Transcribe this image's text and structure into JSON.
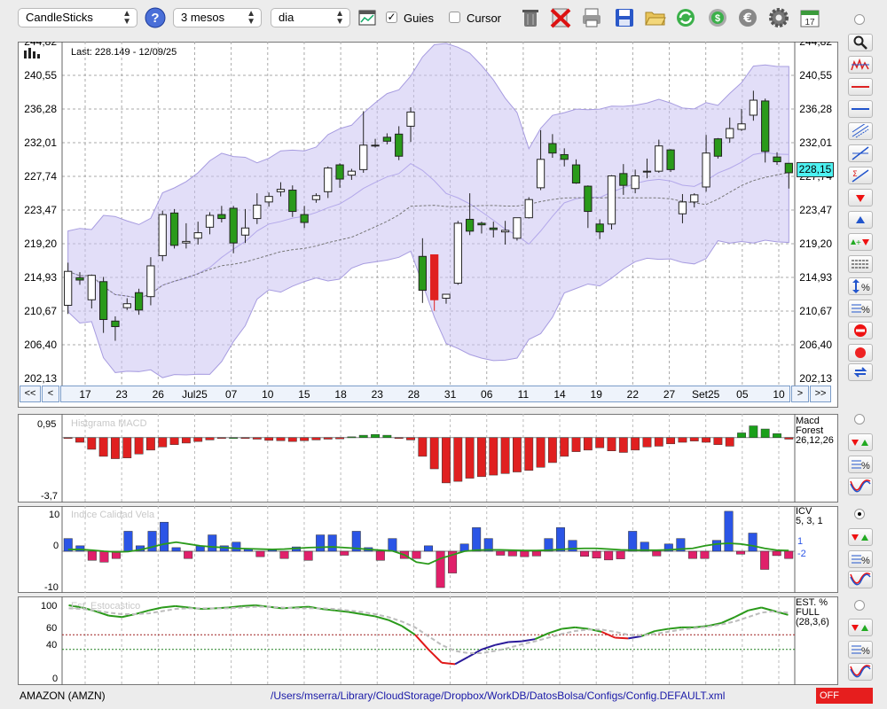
{
  "toolbar": {
    "chart_type": "CandleSticks",
    "period": "3 mesos",
    "interval": "dia",
    "guides_label": "Guies",
    "guides_checked": true,
    "cursor_label": "Cursor",
    "cursor_checked": false
  },
  "main_chart": {
    "last_label": "Last: 228.149 - 12/09/25",
    "price_badge": "228,15",
    "y_ticks": [
      "244,82",
      "240,55",
      "236,28",
      "232,01",
      "227,74",
      "223,47",
      "219,20",
      "214,93",
      "210,67",
      "206,40",
      "202,13"
    ],
    "x_labels": [
      "17",
      "23",
      "26",
      "Jul25",
      "07",
      "10",
      "15",
      "18",
      "23",
      "28",
      "31",
      "06",
      "11",
      "14",
      "19",
      "22",
      "27",
      "Set25",
      "05",
      "10"
    ],
    "nav_left": [
      "<<",
      "<"
    ],
    "nav_right": [
      ">",
      ">>"
    ]
  },
  "macd_panel": {
    "watermark": "Histgrama MACD",
    "y_top": "0,95",
    "y_bottom": "-3,7",
    "right_label_1": "Macd",
    "right_label_2": "Forest",
    "right_label_3": "26,12,26"
  },
  "icv_panel": {
    "watermark": "Indice Calidad Vela",
    "y_top": "10",
    "y_mid": "0",
    "y_bottom": "-10",
    "right_label_1": "ICV",
    "right_label_2": "5, 3, 1",
    "right_pos": "1",
    "right_neg": "-2"
  },
  "stoch_panel": {
    "watermark": "Est. Estocastico",
    "y_ticks": [
      "100",
      "60",
      "40",
      "0"
    ],
    "right_label_1": "EST. %",
    "right_label_2": "FULL",
    "right_label_3": "(28,3,6)"
  },
  "status": {
    "symbol": "AMAZON (AMZN)",
    "config_path": "/Users/mserra/Library/CloudStorage/Dropbox/WorkDB/DatosBolsa/Configs/Config.DEFAULT.xml",
    "badge": "OFF"
  },
  "colors": {
    "bull": "#ffffff",
    "bear": "#2a9a1a",
    "band": "#cbc3f2",
    "macd_neg": "#e02020",
    "macd_pos": "#1aa01a",
    "icv_pos": "#2b55e6",
    "icv_neg": "#e0206a",
    "icv_line": "#2a9a1a",
    "stoch_k": "#2a9a1a",
    "stoch_d": "#bdbdbd",
    "off_badge": "#e61e1e"
  },
  "chart_data": [
    {
      "type": "candlestick",
      "title": "Last: 228.149 - 12/09/25",
      "ylim": [
        202.13,
        244.82
      ],
      "x_tick_labels": [
        "17",
        "23",
        "26",
        "Jul25",
        "07",
        "10",
        "15",
        "18",
        "23",
        "28",
        "31",
        "06",
        "11",
        "14",
        "19",
        "22",
        "27",
        "Set25",
        "05",
        "10"
      ],
      "candles": [
        {
          "o": 211.4,
          "h": 216.8,
          "l": 210.3,
          "c": 215.7
        },
        {
          "o": 214.9,
          "h": 215.6,
          "l": 214.0,
          "c": 214.6
        },
        {
          "o": 212.1,
          "h": 215.3,
          "l": 211.0,
          "c": 215.2
        },
        {
          "o": 214.4,
          "h": 215.0,
          "l": 207.9,
          "c": 209.6
        },
        {
          "o": 209.4,
          "h": 210.0,
          "l": 206.9,
          "c": 208.7
        },
        {
          "o": 211.1,
          "h": 212.3,
          "l": 210.8,
          "c": 211.6
        },
        {
          "o": 213.0,
          "h": 213.5,
          "l": 210.2,
          "c": 210.8
        },
        {
          "o": 212.5,
          "h": 217.5,
          "l": 211.4,
          "c": 216.4
        },
        {
          "o": 217.7,
          "h": 223.4,
          "l": 217.0,
          "c": 222.9
        },
        {
          "o": 223.1,
          "h": 223.6,
          "l": 218.6,
          "c": 219.0
        },
        {
          "o": 219.3,
          "h": 221.8,
          "l": 218.6,
          "c": 219.5
        },
        {
          "o": 219.9,
          "h": 222.0,
          "l": 219.1,
          "c": 220.6
        },
        {
          "o": 221.3,
          "h": 223.2,
          "l": 220.4,
          "c": 222.8
        },
        {
          "o": 222.9,
          "h": 224.0,
          "l": 221.9,
          "c": 222.4
        },
        {
          "o": 223.7,
          "h": 224.0,
          "l": 218.0,
          "c": 219.3
        },
        {
          "o": 220.3,
          "h": 223.6,
          "l": 219.3,
          "c": 221.2
        },
        {
          "o": 222.4,
          "h": 225.6,
          "l": 221.7,
          "c": 224.1
        },
        {
          "o": 224.5,
          "h": 225.7,
          "l": 223.9,
          "c": 225.2
        },
        {
          "o": 225.8,
          "h": 227.0,
          "l": 225.2,
          "c": 226.1
        },
        {
          "o": 226.0,
          "h": 226.6,
          "l": 222.6,
          "c": 223.3
        },
        {
          "o": 222.9,
          "h": 224.0,
          "l": 221.2,
          "c": 221.9
        },
        {
          "o": 224.8,
          "h": 225.6,
          "l": 224.4,
          "c": 225.3
        },
        {
          "o": 225.8,
          "h": 229.0,
          "l": 225.0,
          "c": 228.8
        },
        {
          "o": 229.2,
          "h": 229.4,
          "l": 226.3,
          "c": 227.4
        },
        {
          "o": 227.9,
          "h": 228.7,
          "l": 227.3,
          "c": 228.4
        },
        {
          "o": 228.6,
          "h": 236.0,
          "l": 228.2,
          "c": 231.7
        },
        {
          "o": 231.6,
          "h": 232.5,
          "l": 231.4,
          "c": 231.7
        },
        {
          "o": 232.7,
          "h": 233.2,
          "l": 231.8,
          "c": 232.2
        },
        {
          "o": 233.1,
          "h": 234.1,
          "l": 229.8,
          "c": 230.3
        },
        {
          "o": 234.1,
          "h": 236.5,
          "l": 232.1,
          "c": 235.9
        },
        {
          "o": 217.6,
          "h": 219.9,
          "l": 211.7,
          "c": 213.3
        },
        {
          "o": 217.8,
          "h": 217.8,
          "l": 210.7,
          "c": 212.1
        },
        {
          "o": 212.3,
          "h": 212.4,
          "l": 211.6,
          "c": 212.8
        },
        {
          "o": 214.2,
          "h": 222.1,
          "l": 214.0,
          "c": 221.8
        },
        {
          "o": 222.3,
          "h": 225.6,
          "l": 220.3,
          "c": 220.8
        },
        {
          "o": 221.8,
          "h": 222.0,
          "l": 220.5,
          "c": 221.6
        },
        {
          "o": 221.2,
          "h": 222.0,
          "l": 220.0,
          "c": 221.0
        },
        {
          "o": 220.7,
          "h": 222.1,
          "l": 219.1,
          "c": 220.9
        },
        {
          "o": 219.9,
          "h": 222.2,
          "l": 219.6,
          "c": 222.5
        },
        {
          "o": 222.5,
          "h": 225.1,
          "l": 222.4,
          "c": 224.8
        },
        {
          "o": 226.3,
          "h": 233.6,
          "l": 226.0,
          "c": 229.9
        },
        {
          "o": 231.9,
          "h": 233.1,
          "l": 230.1,
          "c": 230.7
        },
        {
          "o": 230.5,
          "h": 231.3,
          "l": 229.0,
          "c": 229.9
        },
        {
          "o": 229.2,
          "h": 229.9,
          "l": 226.8,
          "c": 226.9
        },
        {
          "o": 226.5,
          "h": 226.6,
          "l": 221.2,
          "c": 223.3
        },
        {
          "o": 221.7,
          "h": 222.3,
          "l": 219.8,
          "c": 220.7
        },
        {
          "o": 221.7,
          "h": 227.9,
          "l": 221.0,
          "c": 227.8
        },
        {
          "o": 228.1,
          "h": 229.3,
          "l": 225.4,
          "c": 226.6
        },
        {
          "o": 226.2,
          "h": 228.6,
          "l": 225.6,
          "c": 227.8
        },
        {
          "o": 228.3,
          "h": 230.0,
          "l": 227.5,
          "c": 228.4
        },
        {
          "o": 228.4,
          "h": 232.4,
          "l": 228.2,
          "c": 231.6
        },
        {
          "o": 231.1,
          "h": 231.2,
          "l": 228.3,
          "c": 228.6
        },
        {
          "o": 223.0,
          "h": 225.5,
          "l": 221.8,
          "c": 224.5
        },
        {
          "o": 224.5,
          "h": 225.6,
          "l": 223.8,
          "c": 225.4
        },
        {
          "o": 226.4,
          "h": 233.0,
          "l": 225.8,
          "c": 230.7
        },
        {
          "o": 232.5,
          "h": 232.6,
          "l": 230.0,
          "c": 230.3
        },
        {
          "o": 232.6,
          "h": 235.2,
          "l": 232.0,
          "c": 233.8
        },
        {
          "o": 233.7,
          "h": 236.3,
          "l": 233.5,
          "c": 234.4
        },
        {
          "o": 235.5,
          "h": 238.6,
          "l": 234.8,
          "c": 237.4
        },
        {
          "o": 237.3,
          "h": 237.6,
          "l": 229.5,
          "c": 230.9
        },
        {
          "o": 230.2,
          "h": 230.8,
          "l": 229.2,
          "c": 229.6
        },
        {
          "o": 229.4,
          "h": 229.4,
          "l": 226.2,
          "c": 228.2
        }
      ]
    },
    {
      "type": "bar",
      "title": "Histgrama MACD",
      "ylim": [
        -3.7,
        0.95
      ],
      "values": [
        -0.05,
        -0.3,
        -0.75,
        -1.2,
        -1.35,
        -1.3,
        -1.05,
        -0.8,
        -0.6,
        -0.45,
        -0.35,
        -0.25,
        -0.15,
        -0.05,
        0.0,
        -0.05,
        -0.1,
        -0.18,
        -0.2,
        -0.25,
        -0.2,
        -0.15,
        -0.1,
        -0.08,
        0.05,
        0.15,
        0.2,
        0.15,
        -0.02,
        -0.15,
        -1.2,
        -2.0,
        -2.9,
        -2.8,
        -2.6,
        -2.5,
        -2.4,
        -2.3,
        -2.2,
        -2.1,
        -1.9,
        -1.6,
        -1.2,
        -0.9,
        -0.8,
        -0.65,
        -0.85,
        -0.95,
        -0.8,
        -0.6,
        -0.55,
        -0.4,
        -0.3,
        -0.22,
        -0.3,
        -0.45,
        -0.55,
        0.3,
        0.75,
        0.55,
        0.25,
        -0.1
      ]
    },
    {
      "type": "bar",
      "title": "Indice Calidad Vela",
      "ylim": [
        -10,
        10
      ],
      "values": [
        3.5,
        1.5,
        -2.5,
        -3,
        -2,
        5.5,
        1.5,
        5.5,
        8,
        1,
        -2,
        1.5,
        4.5,
        1.5,
        2.5,
        0.7,
        -1.5,
        0.6,
        -2,
        1.2,
        -2.5,
        4.5,
        4.5,
        -1.1,
        5.5,
        1,
        -2.5,
        3.5,
        -2,
        -2,
        1.5,
        -10,
        -6,
        2,
        6.5,
        3.5,
        -1.1,
        -1.3,
        -1.5,
        -1.3,
        3.5,
        6.5,
        3,
        -1.4,
        -1.9,
        -2.4,
        -2.1,
        5.5,
        2.5,
        -1.3,
        2,
        3.5,
        -2,
        -2,
        3,
        11,
        -0.8,
        5,
        -5,
        -1.2,
        -2
      ],
      "signal_k": [
        0.5,
        0.5,
        0.3,
        0,
        -0.2,
        -0.1,
        0.4,
        1.2,
        2,
        2.5,
        2,
        1.5,
        1.2,
        1,
        0.8,
        0.7,
        0.6,
        0.5,
        0.6,
        0.8,
        1,
        1.1,
        1.2,
        1,
        0.8,
        0.5,
        0.3,
        0.1,
        -1,
        -3,
        -3.5,
        -2,
        -1,
        0,
        0.3,
        0.4,
        0.4,
        0.3,
        0.2,
        0.2,
        0.3,
        0.5,
        0.7,
        0.8,
        0.8,
        0.6,
        0.4,
        0.3,
        0.3,
        0.3,
        0.4,
        0.6,
        0.8,
        1.5,
        2,
        2.2,
        2,
        1.5,
        0.8,
        0.3,
        0.2
      ],
      "right_value_pos": 1,
      "right_value_neg": -2
    },
    {
      "type": "line",
      "title": "Est. Estocastico",
      "ylim": [
        0,
        100
      ],
      "series": [
        {
          "name": "K",
          "values": [
            100,
            97,
            92,
            86,
            84,
            88,
            93,
            97,
            99,
            97,
            95,
            96,
            97,
            99,
            100,
            98,
            96,
            97,
            98,
            95,
            93,
            91,
            88,
            85,
            80,
            72,
            60,
            40,
            22,
            20,
            30,
            40,
            46,
            50,
            51,
            54,
            62,
            68,
            70,
            68,
            64,
            56,
            55,
            58,
            65,
            68,
            70,
            70,
            72,
            76,
            84,
            93,
            97,
            92,
            87
          ]
        },
        {
          "name": "D",
          "values": [
            96,
            95,
            93,
            90,
            88,
            88,
            89,
            92,
            95,
            96,
            96,
            96,
            96,
            97,
            98,
            98,
            97,
            96,
            96,
            96,
            95,
            93,
            91,
            88,
            84,
            78,
            70,
            58,
            46,
            38,
            35,
            35,
            38,
            42,
            47,
            51,
            56,
            61,
            65,
            67,
            67,
            64,
            60,
            59,
            61,
            64,
            67,
            69,
            71,
            74,
            78,
            84,
            90,
            92,
            90
          ]
        }
      ],
      "reference_lines": [
        60,
        40
      ]
    }
  ]
}
